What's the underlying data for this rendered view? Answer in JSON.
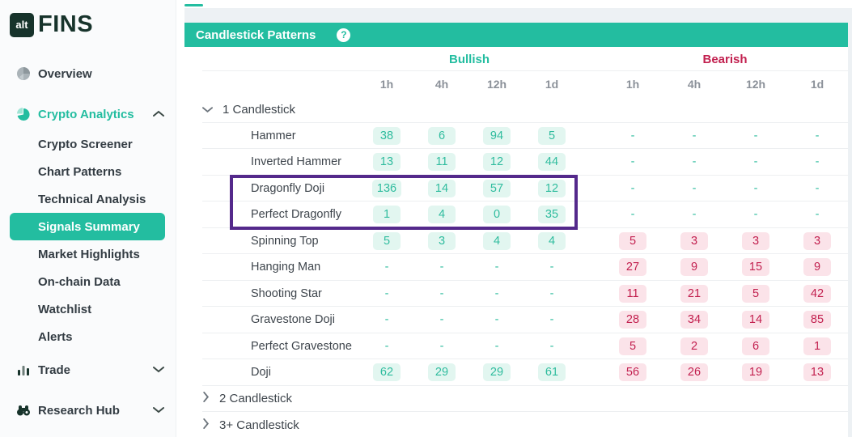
{
  "colors": {
    "teal": "#23bda0",
    "bearish_red": "#c2204f",
    "bull_badge_bg": "#e2f6f0",
    "bear_badge_bg": "#fbe3e9",
    "highlight_purple": "#54298b",
    "logo_green": "#17332b"
  },
  "sidebar": {
    "logo": {
      "alt": "alt",
      "fins": "FINS"
    },
    "overview": {
      "label": "Overview"
    },
    "crypto_analytics": {
      "label": "Crypto Analytics",
      "expanded": true
    },
    "analytics_children": [
      "Crypto Screener",
      "Chart Patterns",
      "Technical Analysis",
      "Signals Summary",
      "Market Highlights",
      "On-chain Data",
      "Watchlist",
      "Alerts"
    ],
    "selected_child": "Signals Summary",
    "trade": {
      "label": "Trade",
      "expanded": false
    },
    "research_hub": {
      "label": "Research Hub",
      "expanded": false
    }
  },
  "panel": {
    "title": "Candlestick Patterns",
    "help_glyph": "?"
  },
  "table": {
    "bullish_label": "Bullish",
    "bearish_label": "Bearish",
    "timeframes": [
      "1h",
      "4h",
      "12h",
      "1d"
    ],
    "sections": [
      {
        "label": "1 Candlestick",
        "expanded": true,
        "rows": [
          {
            "name": "Hammer",
            "bullish": [
              "38",
              "6",
              "94",
              "5"
            ],
            "bearish": [
              "-",
              "-",
              "-",
              "-"
            ]
          },
          {
            "name": "Inverted Hammer",
            "bullish": [
              "13",
              "11",
              "12",
              "44"
            ],
            "bearish": [
              "-",
              "-",
              "-",
              "-"
            ]
          },
          {
            "name": "Dragonfly Doji",
            "bullish": [
              "136",
              "14",
              "57",
              "12"
            ],
            "bearish": [
              "-",
              "-",
              "-",
              "-"
            ]
          },
          {
            "name": "Perfect Dragonfly",
            "bullish": [
              "1",
              "4",
              "0",
              "35"
            ],
            "bearish": [
              "-",
              "-",
              "-",
              "-"
            ]
          },
          {
            "name": "Spinning Top",
            "bullish": [
              "5",
              "3",
              "4",
              "4"
            ],
            "bearish": [
              "5",
              "3",
              "3",
              "3"
            ]
          },
          {
            "name": "Hanging Man",
            "bullish": [
              "-",
              "-",
              "-",
              "-"
            ],
            "bearish": [
              "27",
              "9",
              "15",
              "9"
            ]
          },
          {
            "name": "Shooting Star",
            "bullish": [
              "-",
              "-",
              "-",
              "-"
            ],
            "bearish": [
              "11",
              "21",
              "5",
              "42"
            ]
          },
          {
            "name": "Gravestone Doji",
            "bullish": [
              "-",
              "-",
              "-",
              "-"
            ],
            "bearish": [
              "28",
              "34",
              "14",
              "85"
            ]
          },
          {
            "name": "Perfect Gravestone",
            "bullish": [
              "-",
              "-",
              "-",
              "-"
            ],
            "bearish": [
              "5",
              "2",
              "6",
              "1"
            ]
          },
          {
            "name": "Doji",
            "bullish": [
              "62",
              "29",
              "29",
              "61"
            ],
            "bearish": [
              "56",
              "26",
              "19",
              "13"
            ]
          }
        ]
      },
      {
        "label": "2 Candlestick",
        "expanded": false,
        "rows": []
      },
      {
        "label": "3+ Candlestick",
        "expanded": false,
        "rows": []
      }
    ],
    "highlight": {
      "rows": [
        "Dragonfly Doji",
        "Perfect Dragonfly"
      ],
      "scope": "bullish-columns"
    }
  }
}
